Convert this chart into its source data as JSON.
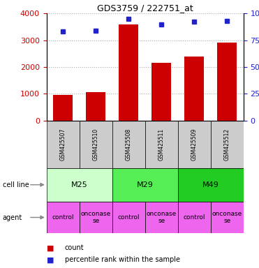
{
  "title": "GDS3759 / 222751_at",
  "samples": [
    "GSM425507",
    "GSM425510",
    "GSM425508",
    "GSM425511",
    "GSM425509",
    "GSM425512"
  ],
  "counts": [
    950,
    1050,
    3600,
    2150,
    2400,
    2900
  ],
  "percentile_ranks": [
    83,
    84,
    95,
    90,
    92,
    93
  ],
  "ylim_left": [
    0,
    4000
  ],
  "ylim_right": [
    0,
    100
  ],
  "yticks_left": [
    0,
    1000,
    2000,
    3000,
    4000
  ],
  "yticks_right": [
    0,
    25,
    50,
    75,
    100
  ],
  "ytick_right_labels": [
    "0",
    "25",
    "50",
    "75",
    "100%"
  ],
  "bar_color": "#cc0000",
  "dot_color": "#2222cc",
  "cell_lines": [
    {
      "label": "M25",
      "span": [
        0,
        2
      ],
      "color": "#ccffcc"
    },
    {
      "label": "M29",
      "span": [
        2,
        4
      ],
      "color": "#55ee55"
    },
    {
      "label": "M49",
      "span": [
        4,
        6
      ],
      "color": "#22cc22"
    }
  ],
  "legend_count_color": "#cc0000",
  "legend_pct_color": "#2222cc",
  "left_tick_color": "#cc0000",
  "right_tick_color": "#2222cc",
  "sample_box_color": "#cccccc",
  "agent_box_color": "#ee66ee",
  "grid_color": "#aaaaaa",
  "agent_labels": [
    "control",
    "onconase",
    "control",
    "onconase",
    "control",
    "onconase"
  ]
}
